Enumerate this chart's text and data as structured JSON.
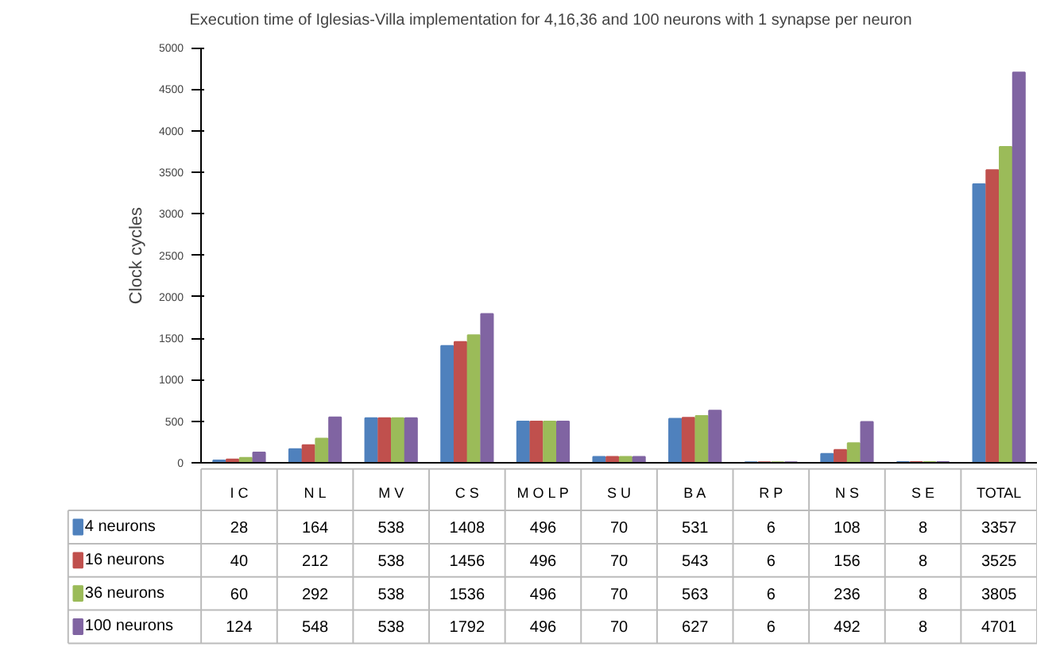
{
  "chart_data": {
    "type": "bar",
    "title": "Execution time of Iglesias-Villa implementation for 4,16,36 and 100 neurons with 1 synapse per neuron",
    "ylabel": "Clock cycles",
    "categories": [
      "I C",
      "N L",
      "M V",
      "C S",
      "M O L P",
      "S U",
      "B A",
      "R P",
      "N S",
      "S E",
      "TOTAL"
    ],
    "series": [
      {
        "name": "4 neurons",
        "color": "#4f81bd",
        "values": [
          28,
          164,
          538,
          1408,
          496,
          70,
          531,
          6,
          108,
          8,
          3357
        ]
      },
      {
        "name": "16 neurons",
        "color": "#c0504d",
        "values": [
          40,
          212,
          538,
          1456,
          496,
          70,
          543,
          6,
          156,
          8,
          3525
        ]
      },
      {
        "name": "36 neurons",
        "color": "#9bbb59",
        "values": [
          60,
          292,
          538,
          1536,
          496,
          70,
          563,
          6,
          236,
          8,
          3805
        ]
      },
      {
        "name": "100 neurons",
        "color": "#8064a2",
        "values": [
          124,
          548,
          538,
          1792,
          496,
          70,
          627,
          6,
          492,
          8,
          4701
        ]
      }
    ],
    "ylim": [
      0,
      5000
    ],
    "yticks": [
      0,
      500,
      1000,
      1500,
      2000,
      2500,
      3000,
      3500,
      4000,
      4500,
      5000
    ],
    "data_labels": true,
    "legend": "bottom left"
  }
}
